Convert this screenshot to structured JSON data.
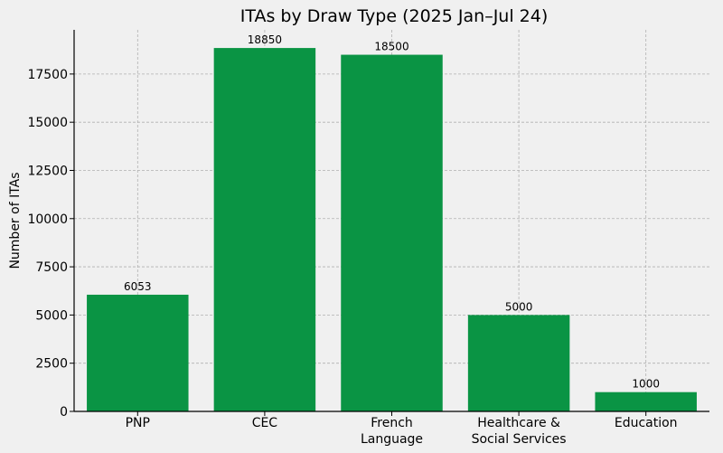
{
  "chart_data": {
    "type": "bar",
    "title": "ITAs by Draw Type (2025 Jan–Jul 24)",
    "xlabel": "",
    "ylabel": "Number of ITAs",
    "categories": [
      [
        "PNP"
      ],
      [
        "CEC"
      ],
      [
        "French",
        "Language"
      ],
      [
        "Healthcare &",
        "Social Services"
      ],
      [
        "Education"
      ]
    ],
    "values": [
      6053,
      18850,
      18500,
      5000,
      1000
    ],
    "data_labels": [
      "6053",
      "18850",
      "18500",
      "5000",
      "1000"
    ],
    "ylim": [
      0,
      19792
    ],
    "yticks": [
      0,
      2500,
      5000,
      7500,
      10000,
      12500,
      15000,
      17500
    ],
    "ytick_labels": [
      "0",
      "2500",
      "5000",
      "7500",
      "10000",
      "12500",
      "15000",
      "17500"
    ],
    "grid": true,
    "colors": {
      "bar": "#0a9444",
      "background": "#f0f0f0",
      "grid": "#b0b0b0",
      "axis": "#000000"
    }
  }
}
